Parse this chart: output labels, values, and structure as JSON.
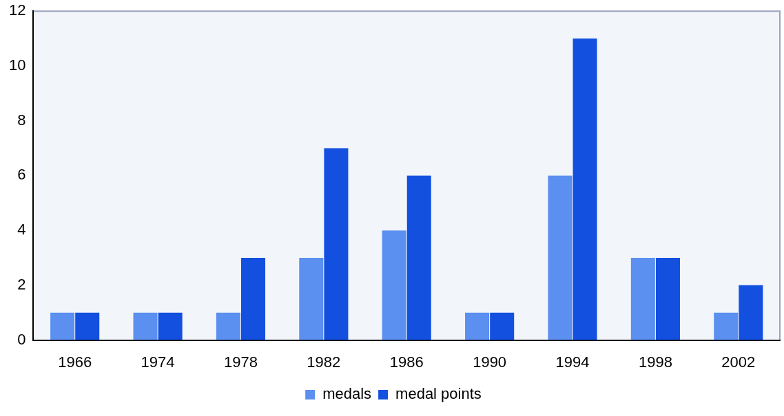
{
  "chart_data": {
    "type": "bar",
    "categories": [
      "1966",
      "1974",
      "1978",
      "1982",
      "1986",
      "1990",
      "1994",
      "1998",
      "2002"
    ],
    "series": [
      {
        "name": "medals",
        "color": "#5b8ff0",
        "values": [
          1,
          1,
          1,
          3,
          4,
          1,
          6,
          3,
          1
        ]
      },
      {
        "name": "medal points",
        "color": "#1450e0",
        "values": [
          1,
          1,
          3,
          7,
          6,
          1,
          11,
          3,
          2
        ]
      }
    ],
    "ylim": [
      0,
      12
    ],
    "yticks": [
      0,
      2,
      4,
      6,
      8,
      10,
      12
    ],
    "grid": false,
    "legend": "bottom"
  }
}
